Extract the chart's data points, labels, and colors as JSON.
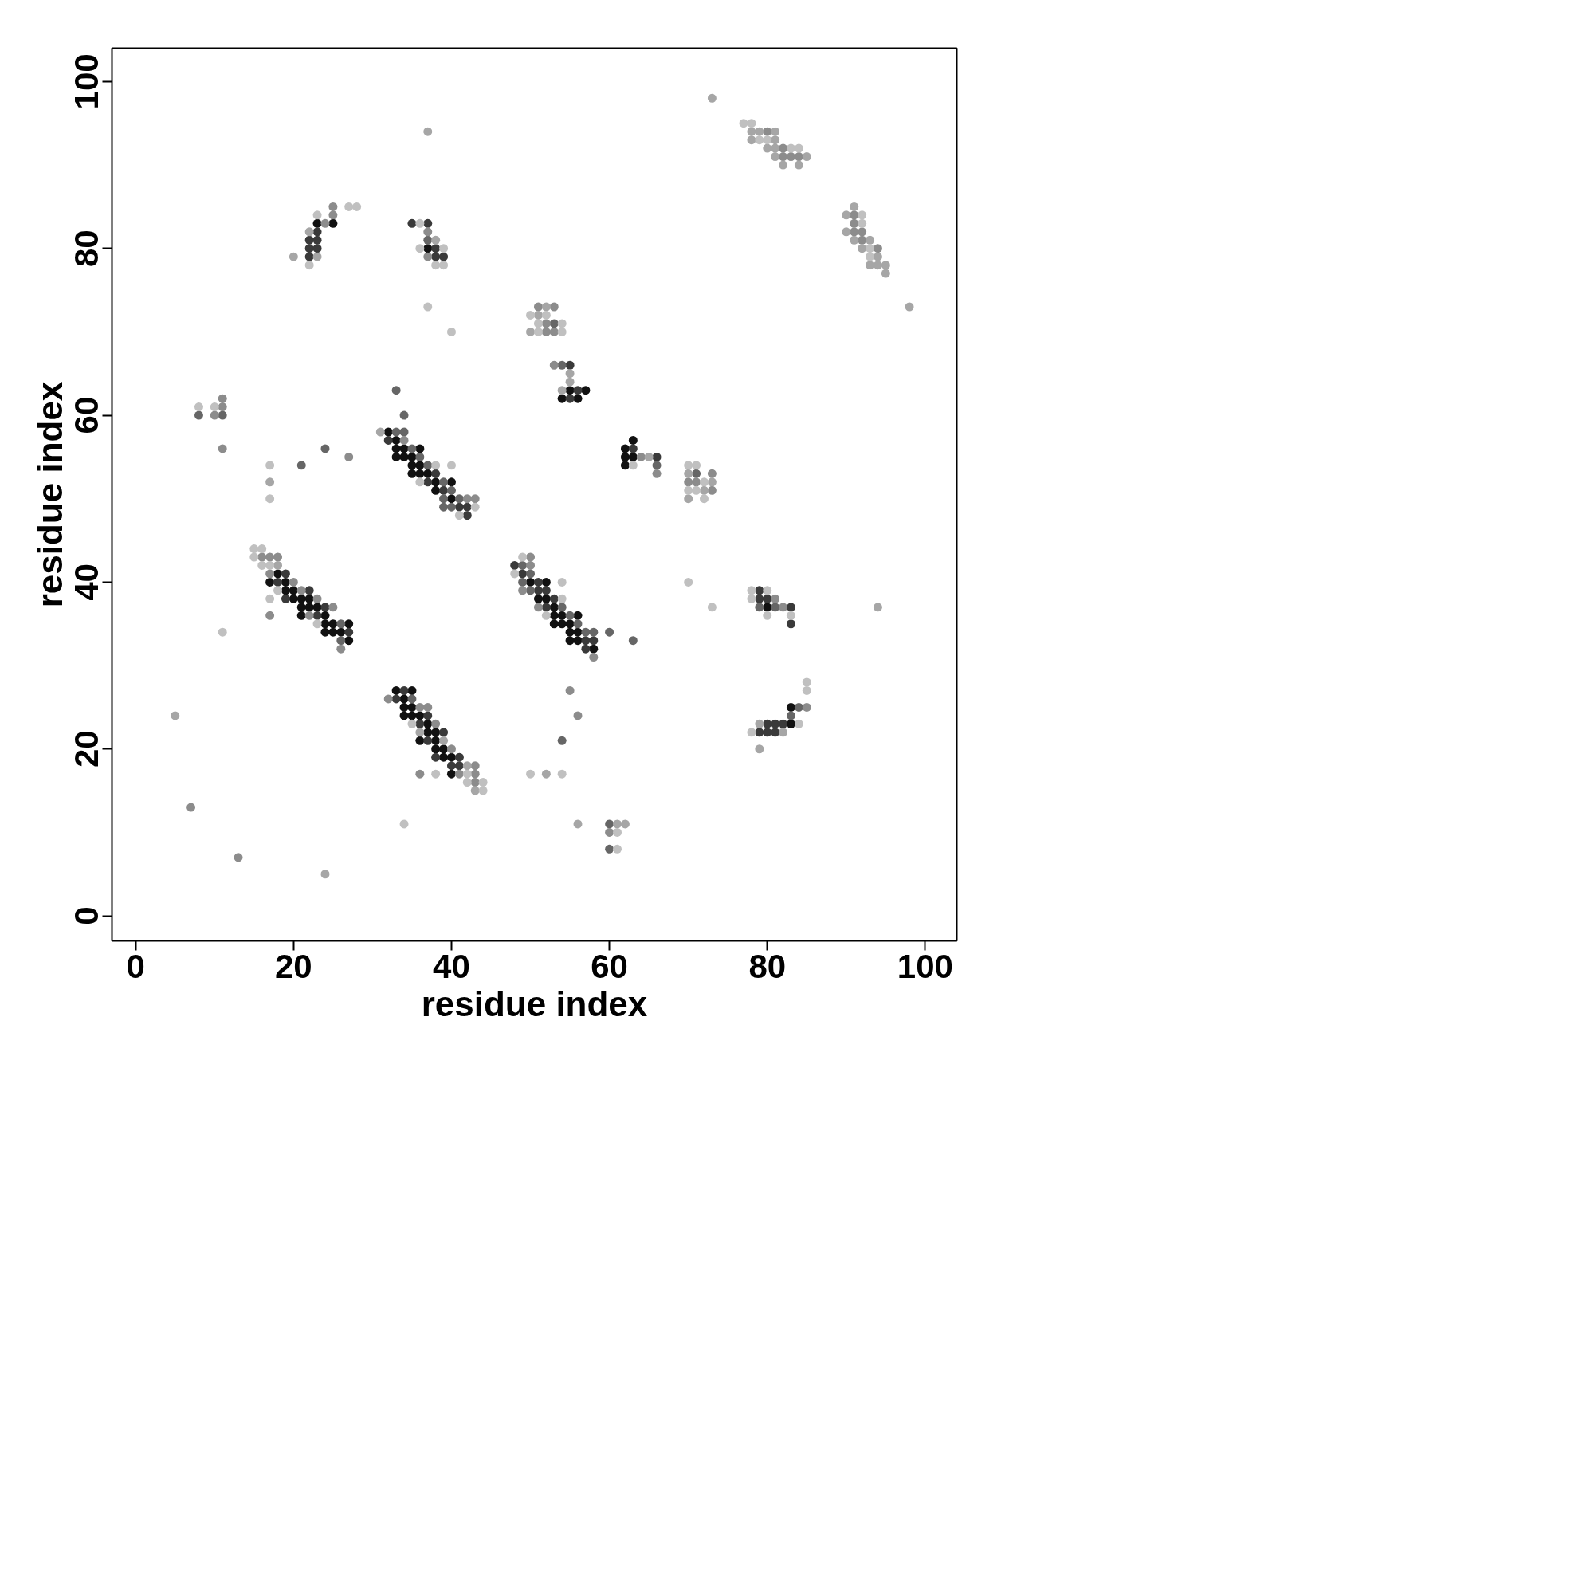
{
  "chart_data": {
    "type": "scatter",
    "xlabel": "residue index",
    "ylabel": "residue index",
    "xlim": [
      -3,
      104
    ],
    "ylim": [
      -3,
      104
    ],
    "xticks": [
      0,
      20,
      40,
      60,
      80,
      100
    ],
    "yticks": [
      0,
      20,
      40,
      60,
      80,
      100
    ],
    "grid": false,
    "marker": "circle",
    "series": [
      {
        "color": "#111111",
        "x": [
          23,
          25,
          37,
          32,
          33,
          33,
          34,
          36,
          33,
          34,
          35,
          35,
          36,
          35,
          36,
          37,
          38,
          40,
          38,
          40,
          18,
          17,
          19,
          19,
          20,
          20,
          21,
          22,
          21,
          22,
          23,
          21,
          24,
          24,
          25,
          27,
          24,
          25,
          26,
          27,
          50,
          52,
          51,
          52,
          53,
          53,
          54,
          56,
          53,
          54,
          55,
          55,
          56,
          55,
          56,
          58,
          80,
          33,
          35,
          34,
          34,
          35,
          34,
          35,
          36,
          37,
          37,
          38,
          36,
          38,
          38,
          39,
          39,
          40,
          40,
          55,
          57,
          54,
          56,
          63,
          62,
          62,
          63,
          62,
          83,
          83
        ],
        "values": [
          83,
          83,
          80,
          58,
          57,
          56,
          56,
          56,
          55,
          55,
          55,
          54,
          54,
          53,
          53,
          53,
          52,
          52,
          51,
          50,
          41,
          40,
          40,
          39,
          39,
          38,
          38,
          38,
          37,
          37,
          37,
          36,
          36,
          35,
          35,
          35,
          34,
          34,
          34,
          33,
          40,
          40,
          38,
          38,
          37,
          36,
          36,
          36,
          35,
          35,
          35,
          34,
          34,
          33,
          33,
          32,
          37,
          27,
          27,
          26,
          25,
          25,
          24,
          24,
          24,
          23,
          22,
          22,
          21,
          21,
          20,
          20,
          19,
          19,
          17,
          63,
          63,
          62,
          62,
          57,
          56,
          55,
          55,
          54,
          25,
          23
        ]
      },
      {
        "color": "#3a3a3a",
        "x": [
          23,
          22,
          23,
          22,
          23,
          22,
          35,
          37,
          38,
          38,
          39,
          32,
          38,
          37,
          39,
          41,
          42,
          42,
          19,
          18,
          22,
          19,
          24,
          23,
          27,
          48,
          49,
          51,
          51,
          52,
          53,
          52,
          57,
          58,
          57,
          79,
          79,
          80,
          83,
          83,
          34,
          33,
          37,
          36,
          39,
          37,
          38,
          41,
          40,
          41,
          55,
          56,
          55,
          63,
          66,
          80,
          81,
          82,
          79,
          80,
          81
        ],
        "values": [
          82,
          81,
          81,
          80,
          80,
          79,
          83,
          83,
          80,
          79,
          79,
          57,
          53,
          52,
          51,
          49,
          49,
          48,
          41,
          40,
          39,
          38,
          37,
          36,
          34,
          42,
          41,
          40,
          39,
          39,
          38,
          37,
          33,
          33,
          32,
          39,
          38,
          38,
          37,
          35,
          27,
          26,
          24,
          23,
          22,
          21,
          19,
          19,
          18,
          18,
          66,
          63,
          62,
          56,
          55,
          23,
          23,
          23,
          22,
          22,
          22
        ]
      },
      {
        "color": "#666666",
        "x": [
          8,
          11,
          24,
          21,
          33,
          34,
          37,
          33,
          34,
          35,
          36,
          37,
          39,
          40,
          39,
          41,
          39,
          40,
          26,
          26,
          49,
          50,
          49,
          50,
          54,
          55,
          56,
          57,
          58,
          60,
          63,
          79,
          81,
          35,
          54,
          66,
          54,
          60,
          60,
          84,
          83,
          53,
          71
        ],
        "values": [
          60,
          60,
          56,
          54,
          63,
          60,
          81,
          58,
          58,
          56,
          55,
          54,
          52,
          51,
          50,
          50,
          49,
          49,
          35,
          33,
          42,
          41,
          40,
          39,
          37,
          36,
          35,
          34,
          34,
          34,
          33,
          37,
          37,
          26,
          66,
          54,
          21,
          11,
          8,
          25,
          24,
          71,
          53
        ]
      },
      {
        "color": "#8c8c8c",
        "x": [
          25,
          25,
          24,
          37,
          37,
          11,
          11,
          10,
          11,
          27,
          34,
          42,
          43,
          16,
          17,
          18,
          17,
          20,
          21,
          23,
          25,
          22,
          17,
          26,
          50,
          50,
          49,
          51,
          58,
          81,
          82,
          32,
          36,
          37,
          38,
          40,
          43,
          36,
          41,
          43,
          43,
          55,
          56,
          60,
          85,
          7,
          13,
          80,
          82,
          82,
          83,
          84,
          91,
          91,
          91,
          92,
          92,
          94,
          51,
          53,
          52,
          52,
          53,
          53,
          64,
          66,
          70,
          71,
          73,
          73
        ],
        "values": [
          85,
          84,
          83,
          82,
          79,
          62,
          61,
          60,
          56,
          55,
          57,
          50,
          50,
          43,
          43,
          43,
          41,
          40,
          39,
          38,
          37,
          36,
          36,
          32,
          43,
          42,
          39,
          37,
          31,
          38,
          37,
          26,
          25,
          25,
          23,
          20,
          18,
          17,
          17,
          17,
          16,
          27,
          24,
          10,
          25,
          13,
          7,
          94,
          92,
          91,
          91,
          91,
          84,
          83,
          82,
          82,
          81,
          80,
          73,
          73,
          71,
          70,
          70,
          66,
          55,
          53,
          52,
          52,
          53,
          51
        ]
      },
      {
        "color": "#a6a6a6",
        "x": [
          22,
          23,
          20,
          38,
          31,
          18,
          36,
          39,
          42,
          43,
          37,
          73,
          98,
          94,
          17,
          78,
          79,
          81,
          78,
          81,
          80,
          81,
          81,
          85,
          82,
          84,
          91,
          90,
          90,
          91,
          93,
          92,
          94,
          93,
          94,
          95,
          95,
          52,
          51,
          50,
          55,
          55,
          54,
          65,
          70,
          73,
          72,
          70,
          52,
          56,
          61,
          62,
          79,
          82,
          79,
          5,
          24
        ],
        "values": [
          82,
          79,
          79,
          81,
          58,
          42,
          22,
          21,
          18,
          15,
          94,
          98,
          73,
          37,
          52,
          94,
          94,
          94,
          93,
          93,
          92,
          92,
          91,
          91,
          90,
          90,
          85,
          84,
          82,
          81,
          81,
          80,
          79,
          78,
          78,
          78,
          77,
          73,
          72,
          70,
          65,
          64,
          63,
          55,
          53,
          52,
          51,
          50,
          17,
          11,
          11,
          11,
          23,
          22,
          20,
          24,
          5
        ]
      },
      {
        "color": "#c0c0c0",
        "x": [
          27,
          28,
          23,
          22,
          36,
          36,
          39,
          38,
          39,
          37,
          40,
          8,
          10,
          17,
          17,
          38,
          40,
          36,
          43,
          41,
          15,
          16,
          15,
          16,
          17,
          18,
          17,
          23,
          11,
          49,
          48,
          54,
          54,
          52,
          78,
          80,
          78,
          80,
          83,
          70,
          73,
          35,
          38,
          42,
          42,
          44,
          44,
          34,
          50,
          54,
          61,
          61,
          78,
          84,
          85,
          85,
          77,
          78,
          79,
          80,
          83,
          84,
          92,
          92,
          93,
          93,
          50,
          52,
          51,
          54,
          51,
          54,
          63,
          70,
          71,
          72,
          70,
          71,
          72
        ],
        "values": [
          85,
          85,
          84,
          78,
          83,
          80,
          80,
          78,
          78,
          73,
          70,
          61,
          61,
          54,
          50,
          54,
          54,
          52,
          49,
          48,
          44,
          44,
          43,
          42,
          42,
          39,
          38,
          35,
          34,
          43,
          41,
          40,
          38,
          36,
          39,
          39,
          38,
          36,
          36,
          40,
          37,
          23,
          17,
          17,
          16,
          16,
          15,
          11,
          17,
          17,
          10,
          8,
          22,
          23,
          27,
          28,
          95,
          95,
          93,
          93,
          92,
          92,
          84,
          83,
          80,
          79,
          72,
          72,
          71,
          71,
          70,
          70,
          54,
          54,
          54,
          52,
          51,
          51,
          50
        ]
      }
    ]
  }
}
